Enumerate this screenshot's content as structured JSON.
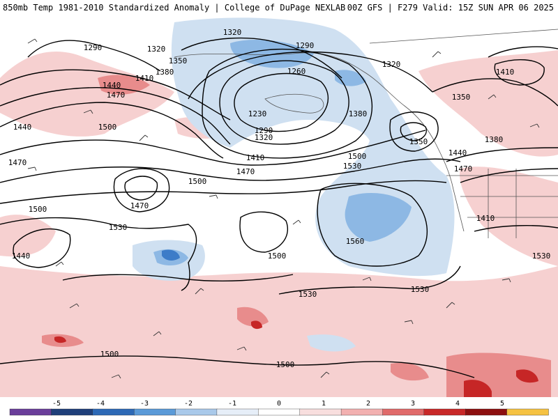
{
  "header": {
    "left": "850mb Temp 1981-2010 Standardized Anomaly | College of DuPage NEXLAB",
    "right": "00Z GFS | F279 Valid: 15Z SUN APR 06 2025"
  },
  "colorbar": {
    "ticks": [
      "-5",
      "-4",
      "-3",
      "-2",
      "-1",
      "0",
      "1",
      "2",
      "3",
      "4",
      "5"
    ],
    "colors": [
      "#6a3d9a",
      "#1f3f7a",
      "#2d69b6",
      "#5a9ad8",
      "#a9c9ea",
      "#e6eef8",
      "#ffffff",
      "#f8dede",
      "#f2b0b0",
      "#e06a6a",
      "#c82828",
      "#8c0f0f",
      "#f5c242"
    ]
  },
  "map": {
    "background": "#ffffff",
    "warm_anomaly_color": "#f4c4c4",
    "strong_warm_color": "#d94040",
    "cold_anomaly_color": "#c9dcef",
    "strong_cold_color": "#5b95d4",
    "contour_color": "#000000",
    "contour_labels": [
      "1320",
      "1290",
      "1320",
      "1350",
      "1290",
      "1380",
      "1410",
      "1440",
      "1470",
      "1260",
      "1320",
      "1230",
      "1290",
      "1320",
      "1380",
      "1350",
      "1410",
      "1350",
      "1380",
      "1440",
      "1470",
      "1410",
      "1470",
      "1500",
      "1530",
      "1500",
      "1440",
      "1470",
      "1470",
      "1500",
      "1500",
      "1530",
      "1560",
      "1440",
      "1500",
      "1530",
      "1530",
      "1500",
      "1530",
      "1500",
      "1410"
    ]
  }
}
